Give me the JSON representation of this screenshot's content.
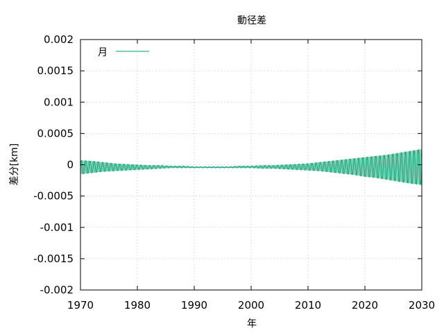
{
  "chart_data": {
    "type": "area",
    "title": "動径差",
    "xlabel": "年",
    "ylabel": "差分[km]",
    "xlim": [
      1970,
      2030
    ],
    "ylim": [
      -0.002,
      0.002
    ],
    "x_ticks": [
      1970,
      1980,
      1990,
      2000,
      2010,
      2020,
      2030
    ],
    "y_ticks": [
      0.002,
      0.0015,
      0.001,
      0.0005,
      0,
      -0.0005,
      -0.001,
      -0.0015,
      -0.002
    ],
    "x_tick_labels": [
      "1970",
      "1980",
      "1990",
      "2000",
      "2010",
      "2020",
      "2030"
    ],
    "y_tick_labels": [
      "0.002",
      "0.0015",
      "0.001",
      "0.0005",
      "0",
      "-0.0005",
      "-0.001",
      "-0.0015",
      "-0.002"
    ],
    "grid": true,
    "legend": {
      "position": "top-left"
    },
    "series": [
      {
        "name": "月",
        "color": "#009e73",
        "fill_color": "#7fcfb3",
        "x": [
          1970,
          1972,
          1974,
          1976,
          1978,
          1980,
          1982,
          1984,
          1986,
          1988,
          1990,
          1992,
          1994,
          1996,
          1998,
          2000,
          2002,
          2004,
          2006,
          2008,
          2010,
          2012,
          2014,
          2016,
          2018,
          2020,
          2022,
          2024,
          2026,
          2028,
          2030
        ],
        "upper": [
          7e-05,
          6e-05,
          4e-05,
          2e-05,
          1e-05,
          0.0,
          -1e-05,
          -1e-05,
          -2e-05,
          -2e-05,
          -3e-05,
          -3e-05,
          -3e-05,
          -3e-05,
          -2e-05,
          -2e-05,
          -1e-05,
          -1e-05,
          0.0,
          1e-05,
          2e-05,
          4e-05,
          6e-05,
          8e-05,
          0.0001,
          0.00012,
          0.00014,
          0.00016,
          0.00019,
          0.00022,
          0.00025
        ],
        "lower": [
          -0.00015,
          -0.00013,
          -0.00011,
          -0.0001,
          -9e-05,
          -8e-05,
          -7e-05,
          -6e-05,
          -5e-05,
          -5e-05,
          -5e-05,
          -5e-05,
          -5e-05,
          -5e-05,
          -5e-05,
          -5e-05,
          -6e-05,
          -6e-05,
          -7e-05,
          -8e-05,
          -9e-05,
          -0.0001,
          -0.00012,
          -0.00014,
          -0.00016,
          -0.00019,
          -0.00021,
          -0.00024,
          -0.00027,
          -0.0003,
          -0.00032
        ],
        "oscillation_period_years": 0.75
      }
    ]
  }
}
